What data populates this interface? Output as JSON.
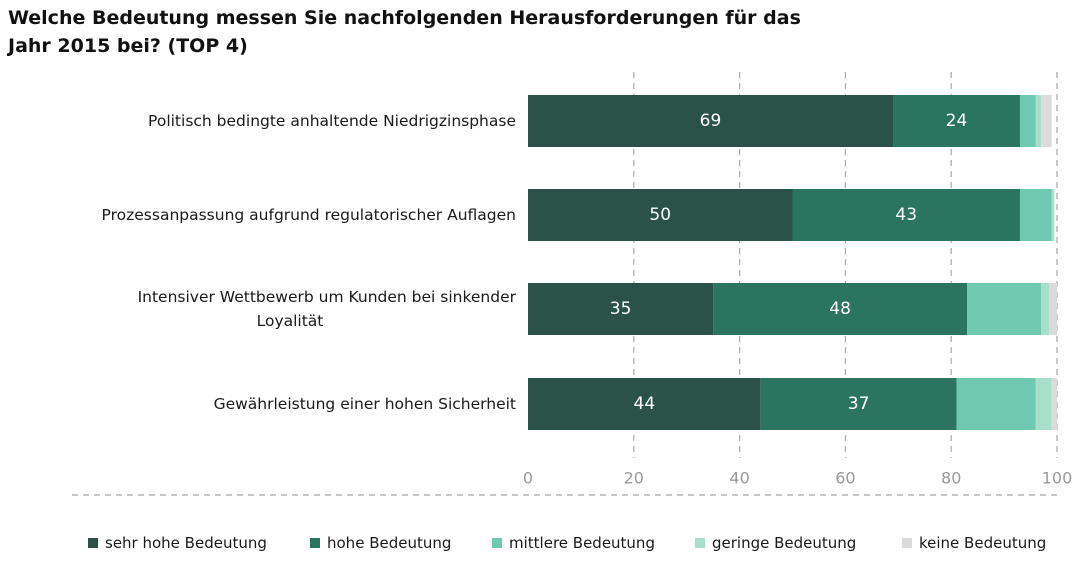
{
  "title": {
    "line1": "Welche Bedeutung messen Sie nachfolgenden Herausforderungen für das",
    "line2": "Jahr 2015 bei? (TOP 4)"
  },
  "chart_data": {
    "type": "bar",
    "orientation": "horizontal",
    "stacked": true,
    "title": "Welche Bedeutung messen Sie nachfolgenden Herausforderungen für das Jahr 2015 bei? (TOP 4)",
    "categories": [
      [
        "Politisch bedingte anhaltende Niedrigzinsphase"
      ],
      [
        "Prozessanpassung aufgrund regulatorischer Auflagen"
      ],
      [
        "Intensiver Wettbewerb um Kunden bei sinkender",
        "Loyalität"
      ],
      [
        "Gewährleistung einer hohen Sicherheit"
      ]
    ],
    "series": [
      {
        "name": "sehr hohe Bedeutung",
        "color": "#2b5249",
        "values": [
          69,
          50,
          35,
          44
        ]
      },
      {
        "name": "hohe Bedeutung",
        "color": "#2a7460",
        "values": [
          24,
          43,
          48,
          37
        ]
      },
      {
        "name": "mittlere Bedeutung",
        "color": "#6fc8b0",
        "values": [
          3,
          6,
          14,
          15
        ]
      },
      {
        "name": "geringe Bedeutung",
        "color": "#a7dfcb",
        "values": [
          1,
          0.5,
          1.5,
          3
        ]
      },
      {
        "name": "keine Bedeutung",
        "color": "#d9dcdb",
        "values": [
          2,
          0,
          1.5,
          1
        ]
      }
    ],
    "data_labels": [
      {
        "category": 0,
        "series": 0,
        "text": "69"
      },
      {
        "category": 0,
        "series": 1,
        "text": "24"
      },
      {
        "category": 1,
        "series": 0,
        "text": "50"
      },
      {
        "category": 1,
        "series": 1,
        "text": "43"
      },
      {
        "category": 2,
        "series": 0,
        "text": "35"
      },
      {
        "category": 2,
        "series": 1,
        "text": "48"
      },
      {
        "category": 3,
        "series": 0,
        "text": "44"
      },
      {
        "category": 3,
        "series": 1,
        "text": "37"
      }
    ],
    "xlim": [
      0,
      100
    ],
    "xticks": [
      0,
      20,
      40,
      60,
      80,
      100
    ],
    "xtick_labels": [
      "0",
      "20",
      "40",
      "60",
      "80",
      "100"
    ],
    "grid": true,
    "legend_position": "bottom"
  }
}
